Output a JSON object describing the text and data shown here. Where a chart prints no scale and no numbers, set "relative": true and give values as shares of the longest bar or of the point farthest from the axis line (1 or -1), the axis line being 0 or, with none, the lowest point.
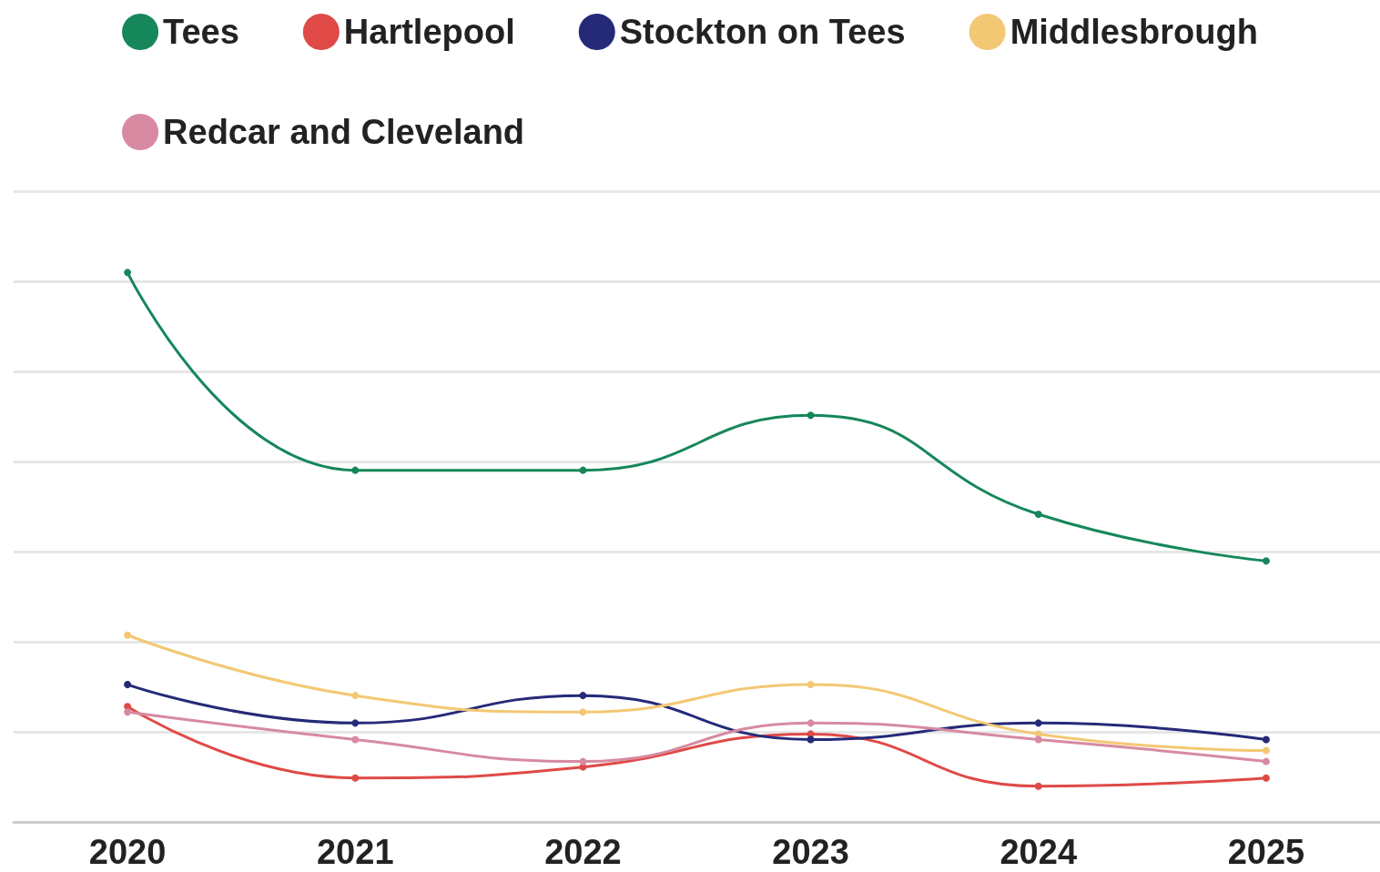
{
  "chart_data": {
    "type": "line",
    "relative": true,
    "categories": [
      "2020",
      "2021",
      "2022",
      "2023",
      "2024",
      "2025"
    ],
    "series": [
      {
        "name": "Tees",
        "color": "#16875a",
        "values": [
          1,
          0.64,
          0.64,
          0.74,
          0.56,
          0.475
        ]
      },
      {
        "name": "Hartlepool",
        "color": "#df4a47",
        "values": [
          0.21,
          0.08,
          0.1,
          0.16,
          0.065,
          0.08
        ]
      },
      {
        "name": "Stockton on Tees",
        "color": "#252a78",
        "values": [
          0.25,
          0.18,
          0.23,
          0.15,
          0.18,
          0.15
        ]
      },
      {
        "name": "Middlesbrough",
        "color": "#f3c874",
        "values": [
          0.34,
          0.23,
          0.2,
          0.25,
          0.16,
          0.13
        ]
      },
      {
        "name": "Redcar and Cleveland",
        "color": "#d78aa2",
        "values": [
          0.2,
          0.15,
          0.11,
          0.18,
          0.15,
          0.11
        ]
      }
    ],
    "grid": "y",
    "legend": "top",
    "marker": "circle",
    "line_style": "solid"
  }
}
